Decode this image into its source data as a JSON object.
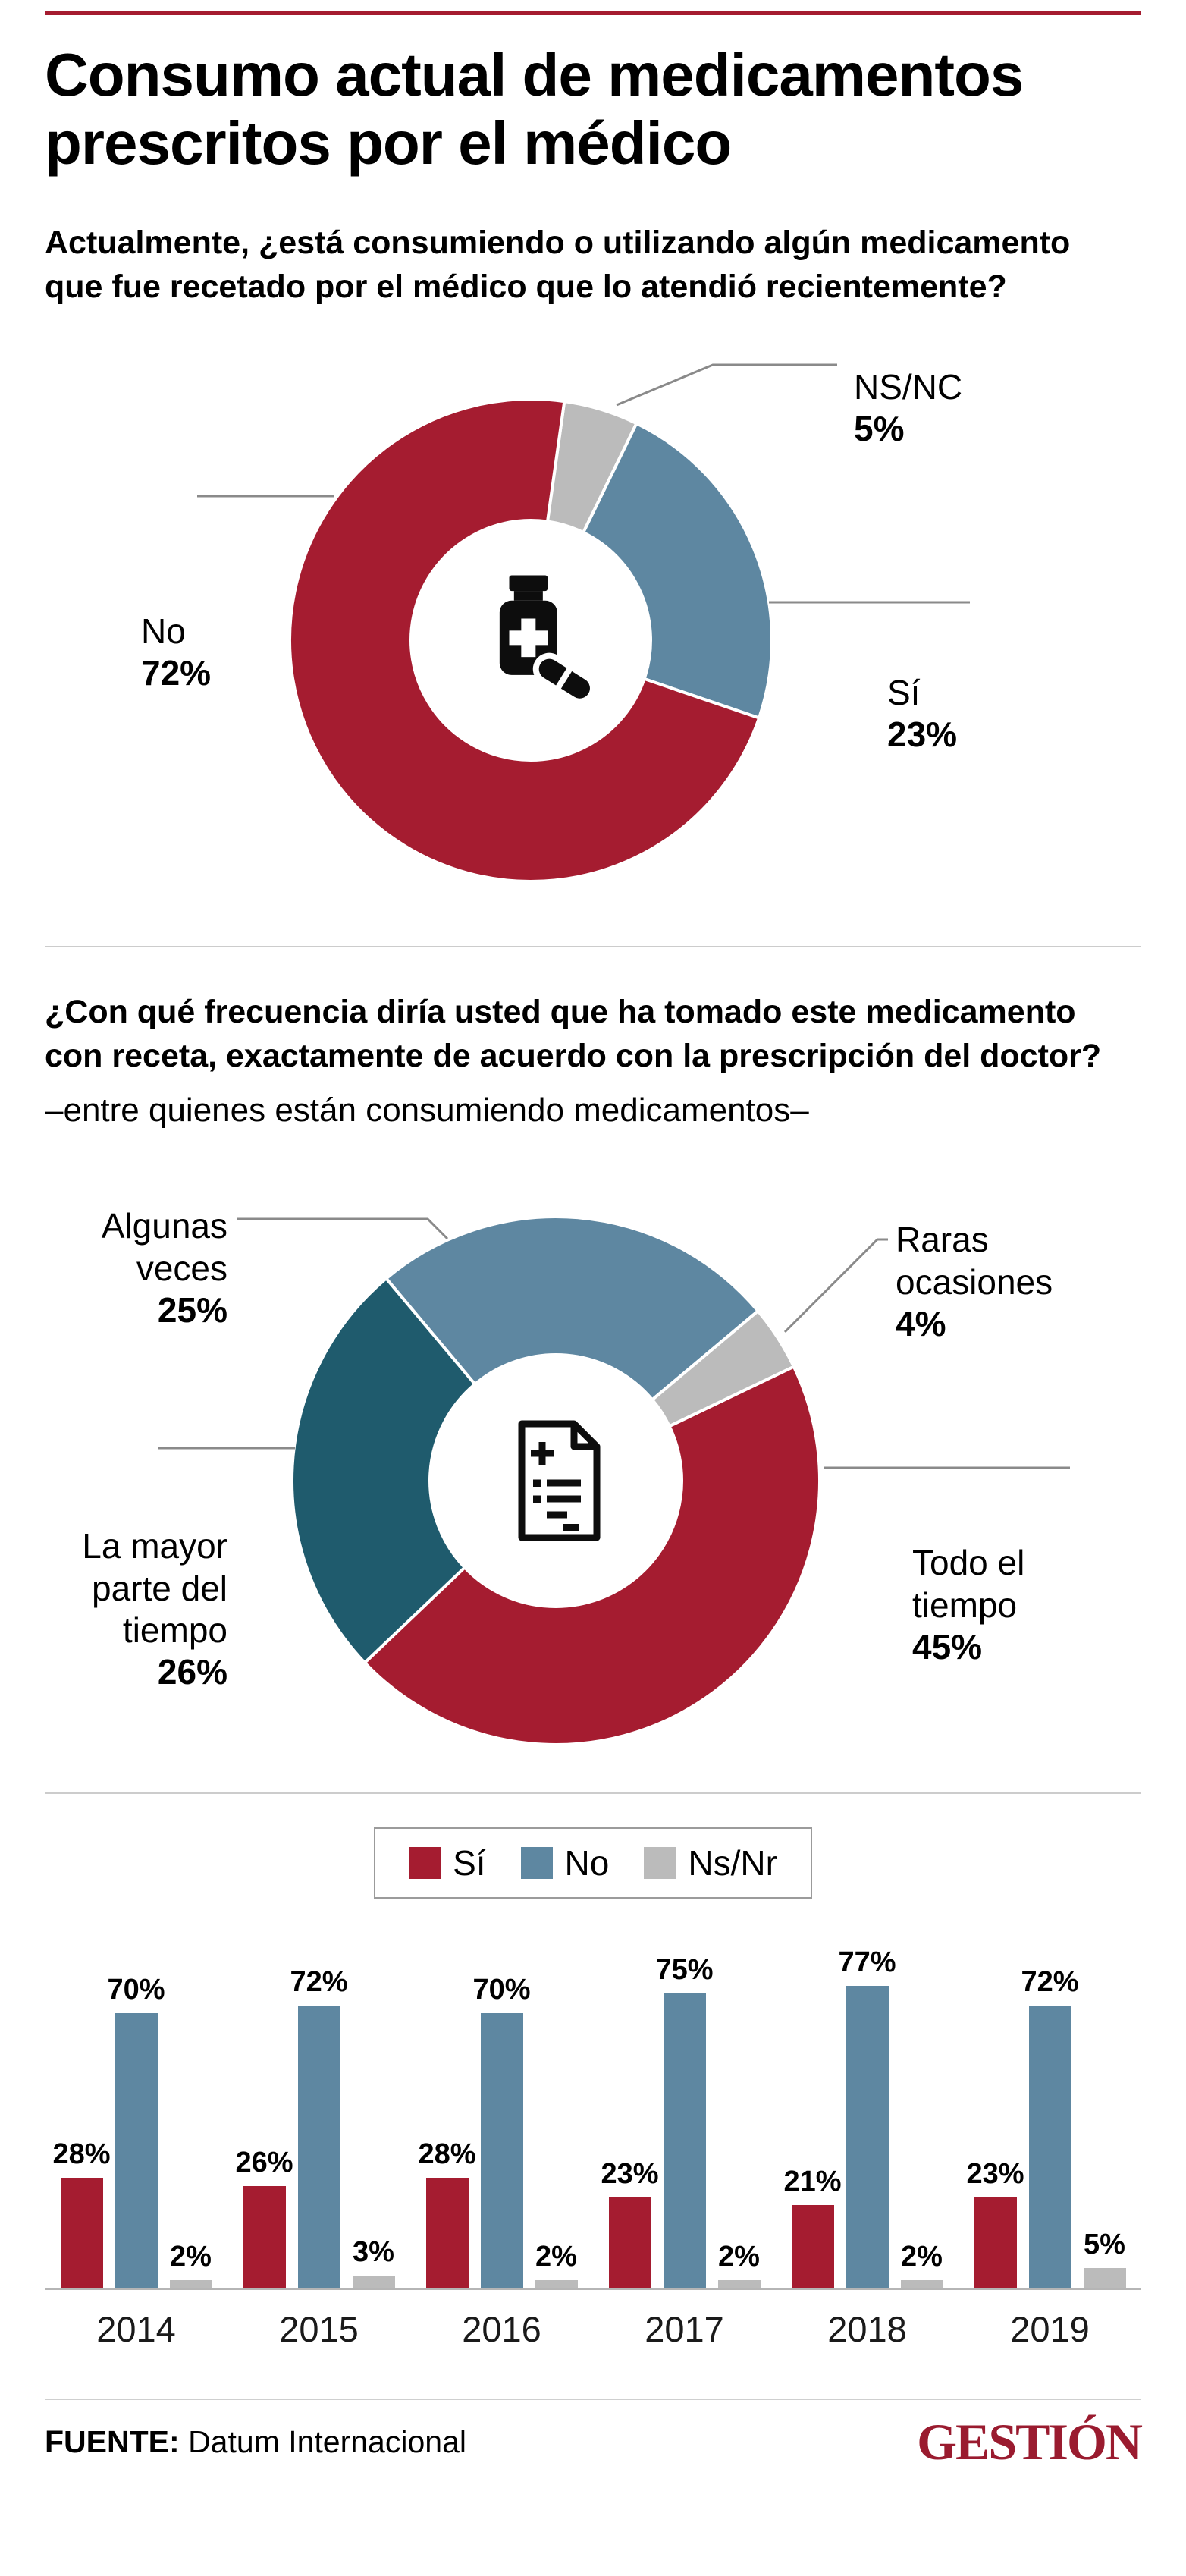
{
  "header": {
    "title": "Consumo actual de medicamentos prescritos por el médico"
  },
  "sections": {
    "q1": {
      "question": "Actualmente, ¿está consumiendo o utilizando algún medicamento que fue recetado por el médico que lo atendió recientemente?"
    },
    "q2": {
      "question": "¿Con qué frecuencia diría usted que ha tomado este medicamento con receta, exactamente de acuerdo con la prescripción del doctor?",
      "note": "–entre quienes están consumiendo medicamentos–"
    }
  },
  "colors": {
    "red": "#A51C30",
    "blue": "#5E87A1",
    "gray": "#BBBBBB",
    "teal": "#1F5B6D",
    "brand_red": "#9A1B2F",
    "leader_line": "#8A8A8A"
  },
  "chart_data": [
    {
      "type": "pie",
      "subtype": "donut",
      "question": "Actualmente, ¿está consumiendo o utilizando algún medicamento que fue recetado por el médico que lo atendió recientemente?",
      "slices": [
        {
          "label": "No",
          "value": 72,
          "color": "#A51C30"
        },
        {
          "label": "Sí",
          "value": 23,
          "color": "#5E87A1"
        },
        {
          "label": "NS/NC",
          "value": 5,
          "color": "#BBBBBB"
        }
      ],
      "center_icon": "medicine-bottle-pill"
    },
    {
      "type": "pie",
      "subtype": "donut",
      "question": "¿Con qué frecuencia diría usted que ha tomado este medicamento con receta, exactamente de acuerdo con la prescripción del doctor?",
      "note": "entre quienes están consumiendo medicamentos",
      "slices": [
        {
          "label": "Todo el tiempo",
          "value": 45,
          "color": "#A51C30"
        },
        {
          "label": "La mayor parte del tiempo",
          "value": 26,
          "color": "#1F5B6D"
        },
        {
          "label": "Algunas veces",
          "value": 25,
          "color": "#5E87A1"
        },
        {
          "label": "Raras ocasiones",
          "value": 4,
          "color": "#BBBBBB"
        }
      ],
      "center_icon": "prescription"
    },
    {
      "type": "bar",
      "categories": [
        "2014",
        "2015",
        "2016",
        "2017",
        "2018",
        "2019"
      ],
      "series": [
        {
          "name": "Sí",
          "color": "#A51C30",
          "values": [
            28,
            26,
            28,
            23,
            21,
            23
          ]
        },
        {
          "name": "No",
          "color": "#5E87A1",
          "values": [
            70,
            72,
            70,
            75,
            77,
            72
          ]
        },
        {
          "name": "Ns/Nr",
          "color": "#BBBBBB",
          "values": [
            2,
            3,
            2,
            2,
            2,
            5
          ]
        }
      ],
      "ylim": [
        0,
        85
      ],
      "value_labels": true,
      "legend_position": "top",
      "grid": false
    }
  ],
  "footer": {
    "source_label": "FUENTE:",
    "source_name": "Datum Internacional",
    "brand": "GESTIÓN"
  }
}
